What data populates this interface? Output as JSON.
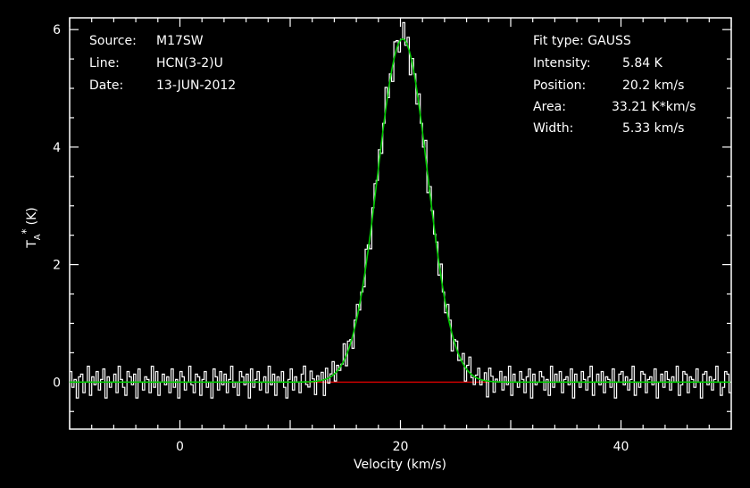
{
  "chart_data": {
    "type": "line",
    "xlabel": "Velocity (km/s)",
    "ylabel": "T",
    "ylabel_sub": "A",
    "ylabel_sup": "*",
    "ylabel_unit": "(K)",
    "xlim": [
      -10,
      50
    ],
    "ylim": [
      -0.8,
      6.2
    ],
    "x_ticks": [
      0,
      20,
      40
    ],
    "y_ticks": [
      0,
      2,
      4,
      6
    ],
    "x_tick_labels": [
      "0",
      "20",
      "40"
    ],
    "y_tick_labels": [
      "0",
      "2",
      "4",
      "6"
    ],
    "grid": false,
    "legend": "none",
    "colors": {
      "spectrum": "#ffffff",
      "fit": "#00cc00",
      "baseline": "#cc0000",
      "frame": "#ffffff"
    },
    "info_left": [
      {
        "key": "Source:",
        "value": "M17SW"
      },
      {
        "key": "Line:",
        "value": "HCN(3-2)U"
      },
      {
        "key": "Date:",
        "value": "13-JUN-2012"
      }
    ],
    "info_right": {
      "header": "Fit type: GAUSS",
      "rows": [
        {
          "key": "Intensity:",
          "value": "5.84 K"
        },
        {
          "key": "Position:",
          "value": "20.2 km/s"
        },
        {
          "key": "Area:",
          "value": "33.21 K*km/s"
        },
        {
          "key": "Width:",
          "value": "5.33 km/s"
        }
      ]
    },
    "fit": {
      "amplitude": 5.84,
      "center": 20.2,
      "fwhm": 5.33
    },
    "baseline_range": [
      11.5,
      28
    ],
    "spectrum": {
      "x_start": -10,
      "x_step": 0.2,
      "noise": [
        0.2,
        -0.1,
        0.05,
        -0.3,
        0.1,
        0.15,
        -0.2,
        0.0,
        0.3,
        -0.25,
        0.1,
        -0.05,
        0.2,
        -0.15,
        0.05,
        0.25,
        -0.3,
        0.1,
        -0.1,
        0.0,
        0.15,
        -0.2,
        0.3,
        0.05,
        -0.1,
        -0.25,
        0.2,
        0.1,
        -0.05,
        0.15,
        -0.3,
        0.25,
        0.0,
        -0.15,
        0.1,
        0.05,
        -0.2,
        0.3,
        -0.1,
        0.2,
        -0.25,
        0.0,
        0.15,
        -0.05,
        0.1,
        -0.2,
        0.25,
        -0.1,
        0.05,
        -0.3,
        0.2,
        0.1,
        -0.15,
        0.0,
        0.3,
        -0.05,
        -0.2,
        0.15,
        0.1,
        -0.25,
        0.05,
        0.2,
        -0.1,
        0.0,
        -0.3,
        0.25,
        0.1,
        -0.15,
        0.2,
        -0.05,
        0.15,
        -0.2,
        0.05,
        0.3,
        -0.1,
        0.0,
        -0.25,
        0.2,
        0.1,
        -0.05,
        0.15,
        -0.3,
        0.25,
        -0.1,
        0.05,
        0.2,
        -0.15,
        0.0,
        0.1,
        -0.2,
        0.3,
        -0.05,
        0.15,
        -0.25,
        0.1,
        0.0,
        0.2,
        -0.1,
        -0.3,
        0.05,
        0.25,
        -0.15,
        0.1,
        0.0,
        -0.2,
        0.15,
        0.3,
        -0.05,
        -0.1,
        0.2,
        0.05,
        -0.25,
        0.1,
        0.0,
        0.15,
        -0.3,
        0.2,
        -0.1,
        0.05,
        0.25,
        -0.15,
        0.1,
        -0.05,
        0.0,
        0.3,
        -0.2,
        0.15,
        0.05,
        -0.25,
        0.1,
        0.2,
        -0.1,
        0.0,
        -0.15,
        0.25,
        0.05,
        -0.3,
        0.1,
        0.2,
        -0.05,
        0.15,
        -0.2,
        0.0,
        0.3,
        -0.1,
        0.05,
        -0.25,
        0.2,
        0.1,
        -0.15,
        0.0,
        0.25,
        -0.05,
        0.15,
        -0.3,
        0.1,
        0.05,
        -0.2,
        0.2,
        0.0,
        -0.1,
        0.3,
        -0.25,
        0.15,
        0.05,
        -0.05,
        0.1,
        -0.2,
        0.25,
        0.0,
        -0.15,
        0.2,
        0.1,
        -0.3,
        0.05,
        0.15,
        -0.1,
        0.0,
        0.2,
        -0.25,
        0.1,
        0.3,
        -0.05,
        -0.15,
        0.05,
        0.2,
        -0.1,
        0.0,
        0.15,
        -0.3,
        0.25,
        0.1,
        -0.2,
        0.05,
        0.0,
        0.2,
        -0.15,
        0.1,
        -0.05,
        0.3,
        -0.25,
        0.15,
        0.0,
        -0.1,
        0.2,
        0.05,
        -0.2,
        0.1,
        0.25,
        -0.3,
        0.15,
        -0.05,
        0.0,
        0.2,
        0.1,
        -0.15,
        0.05,
        -0.25,
        0.3,
        -0.1,
        0.15,
        0.0,
        0.2,
        -0.2,
        0.05,
        0.1,
        -0.05,
        0.25,
        -0.3,
        0.15,
        0.0,
        -0.1,
        0.2,
        0.05,
        -0.15,
        0.1,
        0.3,
        -0.25,
        0.0,
        0.15,
        -0.05,
        0.2,
        -0.2,
        0.1,
        0.05,
        -0.1,
        0.25,
        -0.3,
        0.0,
        0.15,
        0.2,
        -0.05,
        0.1,
        -0.15,
        0.05,
        0.3,
        -0.25,
        0.0,
        -0.1,
        0.2,
        0.15,
        -0.2,
        0.05,
        0.1,
        -0.05,
        0.25,
        -0.3,
        0.0,
        0.15,
        -0.1,
        0.2,
        0.05,
        -0.15,
        0.1,
        0.0,
        0.3,
        -0.25,
        -0.05,
        0.2,
        0.15,
        -0.2,
        0.1,
        0.05,
        -0.1,
        0.25,
        0.0,
        -0.3,
        0.15,
        0.2,
        -0.05,
        0.1,
        -0.15,
        0.05,
        0.3,
        0.0,
        -0.25,
        -0.1,
        0.2,
        0.15,
        -0.2
      ]
    }
  }
}
